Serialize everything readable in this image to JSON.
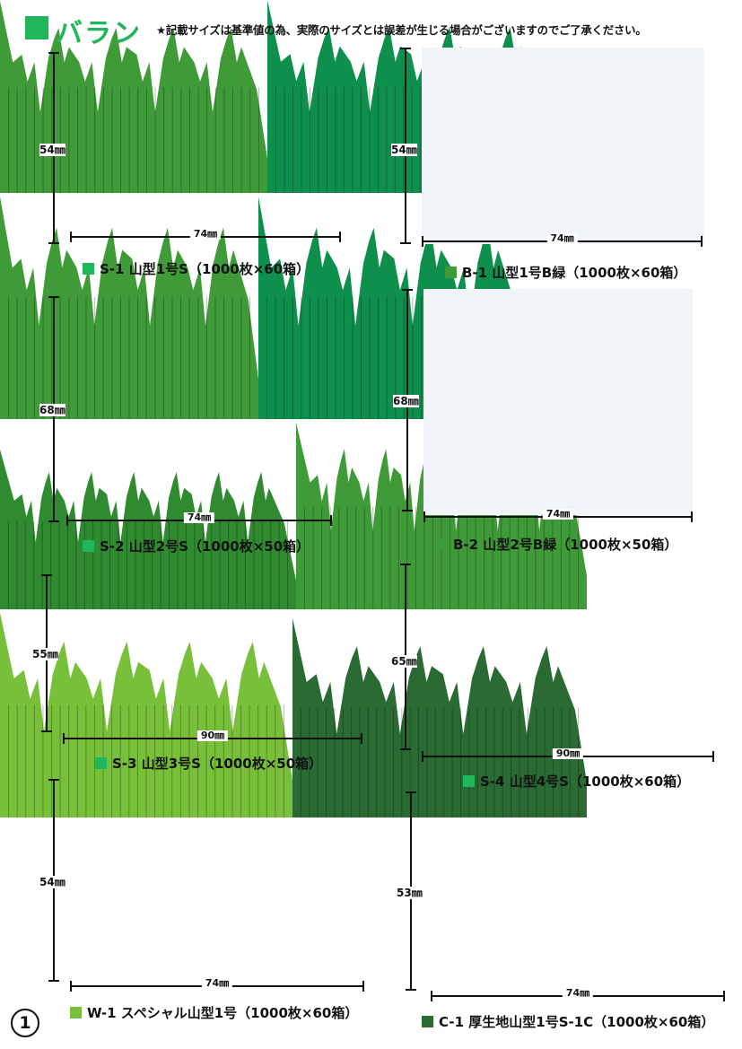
{
  "header": {
    "title": "バラン",
    "note": "★記載サイズは基準値の為、実際のサイズとは誤差が生じる場合がございますのでご了承ください。",
    "accent_color": "#1fb75a"
  },
  "page_number": "1",
  "products": [
    {
      "code": "S-1",
      "name": "山型1号S",
      "packing": "（1000枚×60箱）",
      "height_label": "54㎜",
      "width_label": "74㎜",
      "color": "#3f9b37",
      "swatch": "#1fb75a",
      "peaks": 4,
      "tall_left": true,
      "background": false
    },
    {
      "code": "B-1",
      "name": "山型1号B緑",
      "packing": "（1000枚×60箱）",
      "height_label": "54㎜",
      "width_label": "74㎜",
      "color": "#0f8f4e",
      "swatch": "#3f9b37",
      "peaks": 4,
      "tall_left": true,
      "background": true
    },
    {
      "code": "S-2",
      "name": "山型2号S",
      "packing": "（1000枚×50箱）",
      "height_label": "68㎜",
      "width_label": "74㎜",
      "color": "#3f9b37",
      "swatch": "#1fb75a",
      "peaks": 4,
      "tall_left": true,
      "background": false
    },
    {
      "code": "B-2",
      "name": "山型2号B緑",
      "packing": "（1000枚×50箱）",
      "height_label": "68㎜",
      "width_label": "74㎜",
      "color": "#0f8f4e",
      "swatch": "#3f9b37",
      "peaks": 4,
      "tall_left": true,
      "background": true
    },
    {
      "code": "S-3",
      "name": "山型3号S",
      "packing": "（1000枚×50箱）",
      "height_label": "55㎜",
      "width_label": "90㎜",
      "color": "#2f8a30",
      "swatch": "#1fb75a",
      "peaks": 6,
      "tall_left": true,
      "background": false
    },
    {
      "code": "S-4",
      "name": "山型4号S",
      "packing": "（1000枚×60箱）",
      "height_label": "65㎜",
      "width_label": "90㎜",
      "color": "#3f9b37",
      "swatch": "#1fb75a",
      "peaks": 6,
      "tall_left": true,
      "background": false
    },
    {
      "code": "W-1",
      "name": "スペシャル山型1号",
      "packing": "（1000枚×60箱）",
      "height_label": "54㎜",
      "width_label": "74㎜",
      "color": "#78bf3a",
      "swatch": "#78bf3a",
      "peaks": 4,
      "tall_left": true,
      "background": false
    },
    {
      "code": "C-1",
      "name": "厚生地山型1号S-1C",
      "packing": "（1000枚×60箱）",
      "height_label": "53㎜",
      "width_label": "74㎜",
      "color": "#2a6a33",
      "swatch": "#2a6a33",
      "peaks": 4,
      "tall_left": true,
      "background": false
    }
  ]
}
